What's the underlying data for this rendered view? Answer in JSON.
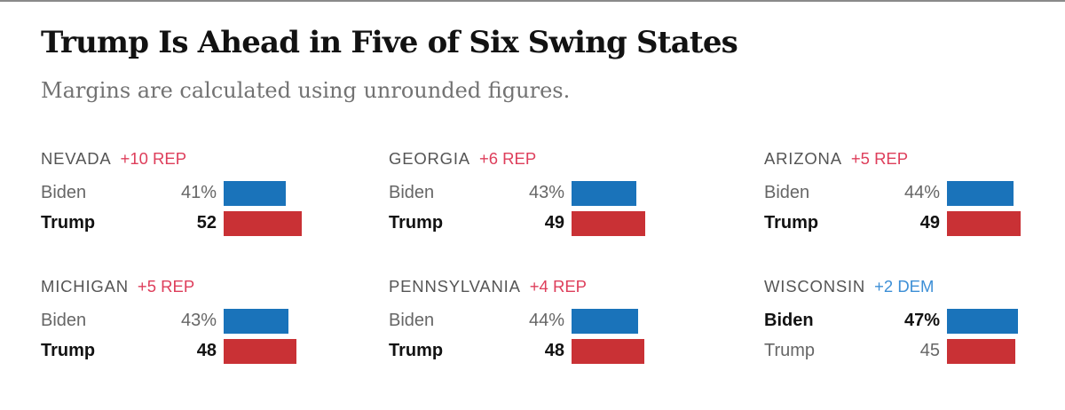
{
  "title": "Trump Is Ahead in Five of Six Swing States",
  "subtitle": "Margins are calculated using unrounded figures.",
  "colors": {
    "dem": "#1a73ba",
    "rep": "#c93135",
    "dem_text": "#3d8fd6",
    "rep_text": "#de3e5b"
  },
  "chart_data": {
    "type": "bar",
    "title": "Trump Is Ahead in Five of Six Swing States",
    "subtitle": "Margins are calculated using unrounded figures.",
    "series": [
      {
        "name": "Biden",
        "color": "#1a73ba"
      },
      {
        "name": "Trump",
        "color": "#c93135"
      }
    ],
    "states": [
      {
        "name": "NEVADA",
        "margin": "+10 REP",
        "margin_party": "rep",
        "rows": [
          {
            "candidate": "Biden",
            "label": "41%",
            "value": 41,
            "party": "dem",
            "leader": false
          },
          {
            "candidate": "Trump",
            "label": "52",
            "value": 52,
            "party": "rep",
            "leader": true
          }
        ]
      },
      {
        "name": "GEORGIA",
        "margin": "+6 REP",
        "margin_party": "rep",
        "rows": [
          {
            "candidate": "Biden",
            "label": "43%",
            "value": 43,
            "party": "dem",
            "leader": false
          },
          {
            "candidate": "Trump",
            "label": "49",
            "value": 49,
            "party": "rep",
            "leader": true
          }
        ]
      },
      {
        "name": "ARIZONA",
        "margin": "+5 REP",
        "margin_party": "rep",
        "rows": [
          {
            "candidate": "Biden",
            "label": "44%",
            "value": 44,
            "party": "dem",
            "leader": false
          },
          {
            "candidate": "Trump",
            "label": "49",
            "value": 49,
            "party": "rep",
            "leader": true
          }
        ]
      },
      {
        "name": "MICHIGAN",
        "margin": "+5 REP",
        "margin_party": "rep",
        "rows": [
          {
            "candidate": "Biden",
            "label": "43%",
            "value": 43,
            "party": "dem",
            "leader": false
          },
          {
            "candidate": "Trump",
            "label": "48",
            "value": 48,
            "party": "rep",
            "leader": true
          }
        ]
      },
      {
        "name": "PENNSYLVANIA",
        "margin": "+4 REP",
        "margin_party": "rep",
        "rows": [
          {
            "candidate": "Biden",
            "label": "44%",
            "value": 44,
            "party": "dem",
            "leader": false
          },
          {
            "candidate": "Trump",
            "label": "48",
            "value": 48,
            "party": "rep",
            "leader": true
          }
        ]
      },
      {
        "name": "WISCONSIN",
        "margin": "+2 DEM",
        "margin_party": "dem",
        "rows": [
          {
            "candidate": "Biden",
            "label": "47%",
            "value": 47,
            "party": "dem",
            "leader": true
          },
          {
            "candidate": "Trump",
            "label": "45",
            "value": 45,
            "party": "rep",
            "leader": false
          }
        ]
      }
    ]
  }
}
